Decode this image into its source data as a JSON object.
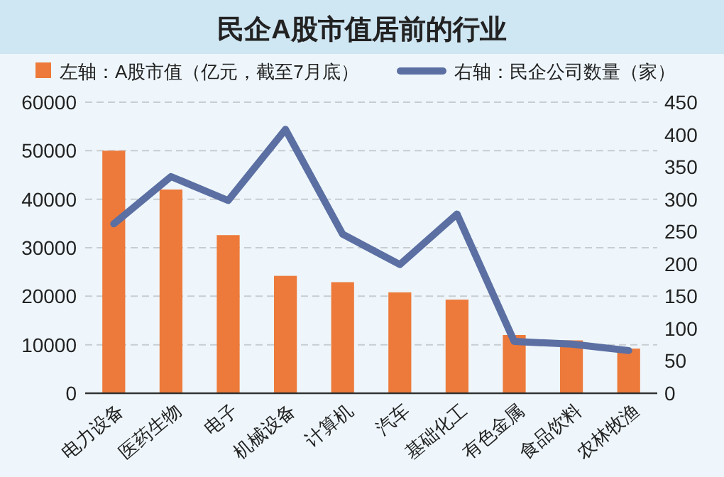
{
  "chart_data": {
    "type": "bar",
    "title": "民企A股市值居前的行业",
    "categories": [
      "电力设备",
      "医药生物",
      "电子",
      "机械设备",
      "计算机",
      "汽车",
      "基础化工",
      "有色金属",
      "食品饮料",
      "农林牧渔"
    ],
    "series": [
      {
        "name": "左轴：A股市值（亿元，截至7月底）",
        "color": "#ed7a3a",
        "values": [
          50000,
          42000,
          32600,
          24200,
          22900,
          20800,
          19300,
          12000,
          10900,
          9200
        ]
      },
      {
        "name": "右轴：民企公司数量（家）",
        "color": "#5b6fa3",
        "type": "line",
        "axis": "y2",
        "values": [
          262,
          335,
          298,
          408,
          246,
          199,
          277,
          80,
          76,
          66
        ]
      }
    ],
    "ylim": [
      0,
      60000
    ],
    "yticks": [
      0,
      10000,
      20000,
      30000,
      40000,
      50000,
      60000
    ],
    "y2lim": [
      0,
      450
    ],
    "y2ticks": [
      0,
      50,
      100,
      150,
      200,
      250,
      300,
      350,
      400,
      450
    ],
    "grid": "y",
    "legend": "top",
    "marker": "none",
    "line_style": "solid"
  }
}
